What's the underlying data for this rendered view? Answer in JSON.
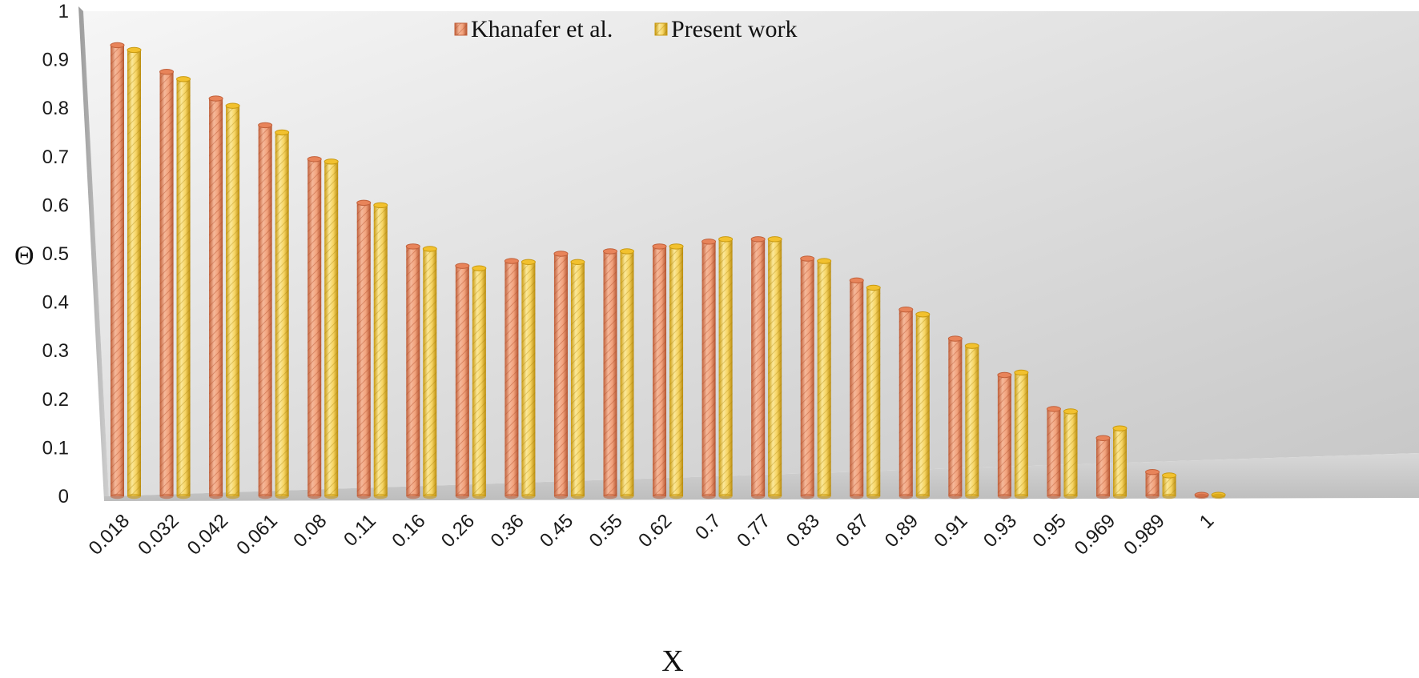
{
  "chart_data": {
    "type": "bar",
    "xlabel": "X",
    "ylabel": "Θ",
    "ylim": [
      0,
      1
    ],
    "yticks": [
      "0",
      "0.1",
      "0.2",
      "0.3",
      "0.4",
      "0.5",
      "0.6",
      "0.7",
      "0.8",
      "0.9",
      "1"
    ],
    "categories": [
      "0.018",
      "0.032",
      "0.042",
      "0.061",
      "0.08",
      "0.11",
      "0.16",
      "0.26",
      "0.36",
      "0.45",
      "0.55",
      "0.62",
      "0.7",
      "0.77",
      "0.83",
      "0.87",
      "0.89",
      "0.91",
      "0.93",
      "0.95",
      "0.969",
      "0.989",
      "1"
    ],
    "series": [
      {
        "name": "Khanafer et al.",
        "color": "#e8845a",
        "values": [
          0.93,
          0.875,
          0.82,
          0.765,
          0.695,
          0.605,
          0.515,
          0.475,
          0.485,
          0.5,
          0.505,
          0.515,
          0.525,
          0.53,
          0.49,
          0.445,
          0.385,
          0.325,
          0.25,
          0.18,
          0.12,
          0.05,
          0.003
        ]
      },
      {
        "name": "Present work",
        "color": "#f2c12e",
        "values": [
          0.92,
          0.86,
          0.805,
          0.75,
          0.69,
          0.6,
          0.51,
          0.47,
          0.483,
          0.483,
          0.505,
          0.515,
          0.53,
          0.53,
          0.485,
          0.43,
          0.375,
          0.31,
          0.255,
          0.175,
          0.14,
          0.043,
          0.003
        ]
      }
    ],
    "legend_position": "top-center",
    "grid": false,
    "style": "3d-cylinder"
  }
}
